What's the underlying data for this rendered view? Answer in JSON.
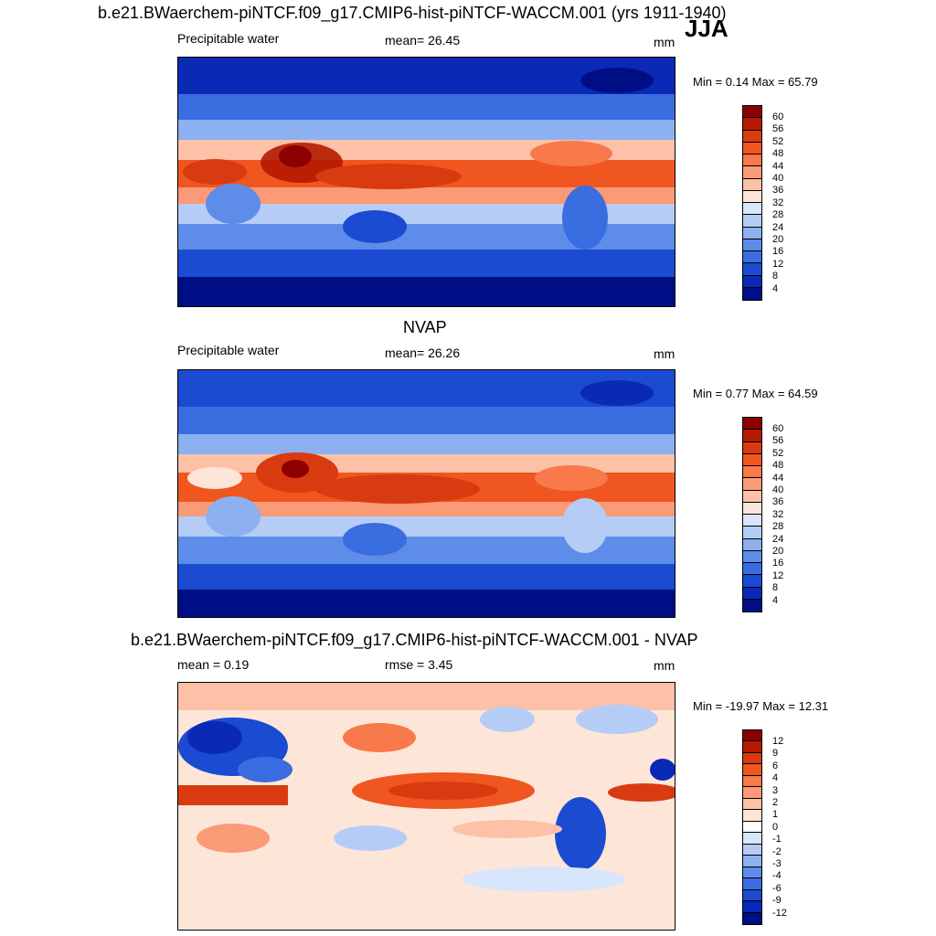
{
  "header": {
    "title": "b.e21.BWaerchem-piNTCF.f09_g17.CMIP6-hist-piNTCF-WACCM.001 (yrs 1911-1940)",
    "season": "JJA"
  },
  "panels": [
    {
      "id": "model",
      "heading": "",
      "left": "Precipitable water",
      "center": "mean=  26.45",
      "right": "mm",
      "minmax": "Min =   0.14 Max =  65.79",
      "palette": "seq",
      "colorbar_labels": [
        "60",
        "56",
        "52",
        "48",
        "44",
        "40",
        "36",
        "32",
        "28",
        "24",
        "20",
        "16",
        "12",
        "8",
        "4"
      ]
    },
    {
      "id": "obs",
      "heading": "NVAP",
      "left": "Precipitable water",
      "center": "mean=  26.26",
      "right": "mm",
      "minmax": "Min =   0.77 Max =  64.59",
      "palette": "seq",
      "colorbar_labels": [
        "60",
        "56",
        "52",
        "48",
        "44",
        "40",
        "36",
        "32",
        "28",
        "24",
        "20",
        "16",
        "12",
        "8",
        "4"
      ]
    },
    {
      "id": "diff",
      "heading": "b.e21.BWaerchem-piNTCF.f09_g17.CMIP6-hist-piNTCF-WACCM.001 - NVAP",
      "left": "mean =   0.19",
      "center": "rmse =   3.45",
      "right": "mm",
      "minmax": "Min = -19.97 Max =  12.31",
      "palette": "div",
      "colorbar_labels": [
        "12",
        "9",
        "6",
        "4",
        "3",
        "2",
        "1",
        "0",
        "-1",
        "-2",
        "-3",
        "-4",
        "-6",
        "-9",
        "-12"
      ]
    }
  ],
  "palettes": {
    "seq": [
      "#8c0000",
      "#b51a00",
      "#d93b10",
      "#f0561f",
      "#f8794a",
      "#fb9a76",
      "#fcc1a6",
      "#fde6d8",
      "#d8e6fb",
      "#b5cdf6",
      "#8cb0f0",
      "#5d8de8",
      "#3a6de0",
      "#1b4bd1",
      "#0a2ab5",
      "#000e85"
    ],
    "div": [
      "#8c0000",
      "#b51a00",
      "#d93b10",
      "#f0561f",
      "#f8794a",
      "#fb9a76",
      "#fcc1a6",
      "#fde6d8",
      "#ffffff",
      "#d8e6fb",
      "#b5cdf6",
      "#8cb0f0",
      "#5d8de8",
      "#3a6de0",
      "#1b4bd1",
      "#0a2ab5",
      "#000e85"
    ]
  }
}
